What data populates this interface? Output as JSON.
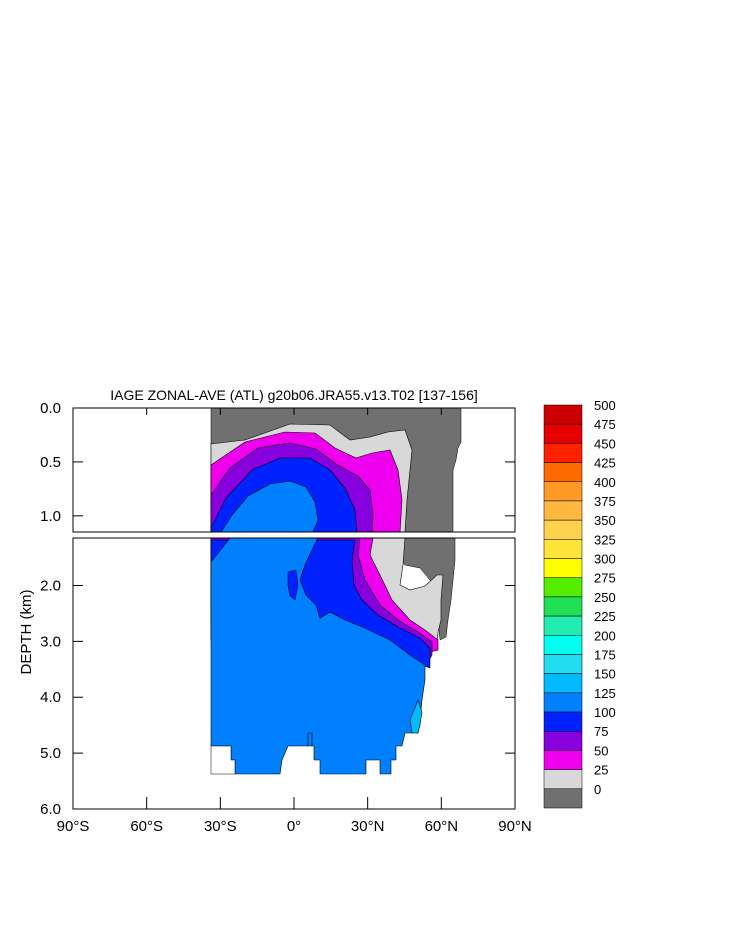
{
  "chart_data": {
    "type": "contour",
    "title": "IAGE ZONAL-AVE (ATL) g20b06.JRA55.v13.T02 [137-156]",
    "ylabel": "DEPTH (km)",
    "xlabel": "",
    "xlim": [
      -90,
      90
    ],
    "ylim_upper_panel": [
      1.15,
      0.0
    ],
    "ylim_lower_panel": [
      6.0,
      1.15
    ],
    "x_ticks": [
      {
        "value": -90,
        "label": "90°S"
      },
      {
        "value": -60,
        "label": "60°S"
      },
      {
        "value": -30,
        "label": "30°S"
      },
      {
        "value": 0,
        "label": "0°"
      },
      {
        "value": 30,
        "label": "30°N"
      },
      {
        "value": 60,
        "label": "60°N"
      },
      {
        "value": 90,
        "label": "90°N"
      }
    ],
    "y_ticks_upper": [
      {
        "value": 0.0,
        "label": "0.0"
      },
      {
        "value": 0.5,
        "label": "0.5"
      },
      {
        "value": 1.0,
        "label": "1.0"
      }
    ],
    "y_ticks_lower": [
      {
        "value": 2.0,
        "label": "2.0"
      },
      {
        "value": 3.0,
        "label": "3.0"
      },
      {
        "value": 4.0,
        "label": "4.0"
      },
      {
        "value": 5.0,
        "label": "5.0"
      },
      {
        "value": 6.0,
        "label": "6.0"
      }
    ],
    "colorbar": {
      "levels": [
        "500",
        "475",
        "450",
        "425",
        "400",
        "375",
        "350",
        "325",
        "300",
        "275",
        "250",
        "225",
        "200",
        "175",
        "150",
        "125",
        "100",
        "75",
        "50",
        "25",
        "0"
      ],
      "colors": [
        "#cc0000",
        "#e60000",
        "#ff2200",
        "#ff6a00",
        "#ff9a26",
        "#ffb840",
        "#ffd24d",
        "#ffe338",
        "#ffff00",
        "#55ee00",
        "#22e055",
        "#22ecb0",
        "#00ffee",
        "#22ddf0",
        "#00bbff",
        "#0080ff",
        "#0022ff",
        "#8800dd",
        "#ee00ee",
        "#d8d8d8",
        "#707070"
      ]
    },
    "regions": [
      {
        "value_range": "0-25",
        "color": "#707070",
        "lat_range": [
          -34,
          68
        ],
        "depth_range": [
          0.0,
          2.9
        ]
      },
      {
        "value_range": "25-50",
        "color": "#d8d8d8",
        "lat_range": [
          -34,
          55
        ],
        "depth_range": [
          0.3,
          3.0
        ]
      },
      {
        "value_range": "50-75",
        "color": "#ee00ee",
        "lat_range": [
          -34,
          58
        ],
        "depth_range": [
          0.4,
          3.3
        ]
      },
      {
        "value_range": "75-100",
        "color": "#8800dd",
        "lat_range": [
          -34,
          56
        ],
        "depth_range": [
          0.5,
          3.4
        ]
      },
      {
        "value_range": "100-125",
        "color": "#0022ff",
        "lat_range": [
          -34,
          54
        ],
        "depth_range": [
          0.6,
          3.5
        ]
      },
      {
        "value_range": "125-150",
        "color": "#0080ff",
        "lat_range": [
          -34,
          54
        ],
        "depth_range": [
          0.7,
          5.4
        ]
      },
      {
        "value_range": "150-175",
        "color": "#00bbff",
        "lat_range": [
          48,
          52
        ],
        "depth_range": [
          4.0,
          4.6
        ]
      }
    ]
  }
}
